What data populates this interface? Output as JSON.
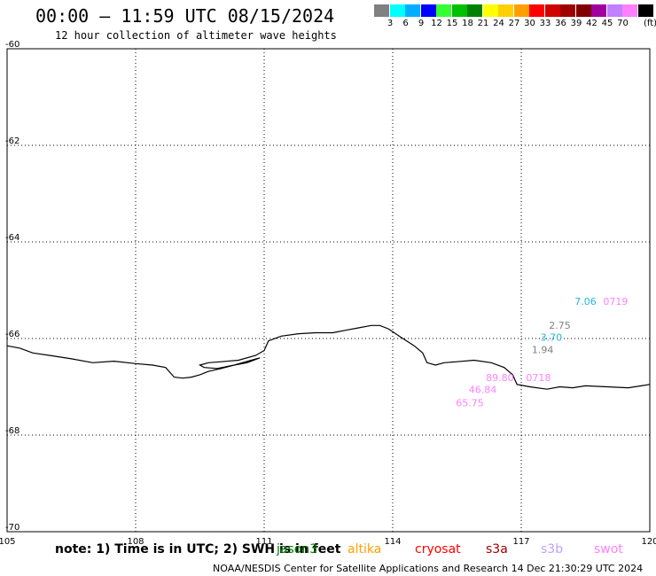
{
  "header": {
    "title": "00:00 – 11:59 UTC 08/15/2024",
    "subtitle": "12 hour collection of altimeter wave heights"
  },
  "colorbar": {
    "unit": "(ft)",
    "colors": [
      "#808080",
      "#00ffff",
      "#00b0ff",
      "#0000ff",
      "#33ff33",
      "#00c000",
      "#008000",
      "#ffff00",
      "#ffd000",
      "#ffa000",
      "#ff0000",
      "#d00000",
      "#a00000",
      "#800000",
      "#a000a0",
      "#c080ff",
      "#ff80ff",
      "#000000"
    ],
    "ticks": [
      "3",
      "6",
      "9",
      "12",
      "15",
      "18",
      "21",
      "24",
      "27",
      "30",
      "33",
      "36",
      "39",
      "42",
      "45",
      "70"
    ]
  },
  "map": {
    "lon_range": [
      105,
      120
    ],
    "lat_range": [
      -70,
      -60
    ],
    "x_ticks": [
      "105",
      "108",
      "111",
      "114",
      "117",
      "120"
    ],
    "y_ticks": [
      "-60",
      "-62",
      "-64",
      "-66",
      "-68",
      "-70"
    ],
    "coastline_color": "#000000",
    "observations": [
      {
        "label": "7.06",
        "color": "#22b8d8",
        "lon": 118.5,
        "lat": -65.3
      },
      {
        "label": "0719",
        "color": "#ff80ff",
        "lon": 119.2,
        "lat": -65.3
      },
      {
        "label": "2.75",
        "color": "#808080",
        "lon": 117.9,
        "lat": -65.8
      },
      {
        "label": "3.70",
        "color": "#22b8d8",
        "lon": 117.7,
        "lat": -66.05
      },
      {
        "label": "1.94",
        "color": "#808080",
        "lon": 117.5,
        "lat": -66.3
      },
      {
        "label": "89.80",
        "color": "#ff80ff",
        "lon": 116.5,
        "lat": -66.88
      },
      {
        "label": "0718",
        "color": "#ff80ff",
        "lon": 117.4,
        "lat": -66.88
      },
      {
        "label": "46.84",
        "color": "#ff80ff",
        "lon": 116.1,
        "lat": -67.13
      },
      {
        "label": "65.75",
        "color": "#ff80ff",
        "lon": 115.8,
        "lat": -67.4
      }
    ]
  },
  "footer": {
    "note": "note: 1) Time is in UTC; 2) SWH is in feet",
    "satellites": [
      {
        "name": "jason3",
        "color": "#008000"
      },
      {
        "name": "altika",
        "color": "#ffa000"
      },
      {
        "name": "cryosat",
        "color": "#ff0000"
      },
      {
        "name": "s3a",
        "color": "#a00000"
      },
      {
        "name": "s3b",
        "color": "#c0a0ff"
      },
      {
        "name": "swot",
        "color": "#ff80ff"
      }
    ],
    "credit": "NOAA/NESDIS Center for Satellite Applications and Research    14 Dec 21:30:29 UTC 2024"
  }
}
